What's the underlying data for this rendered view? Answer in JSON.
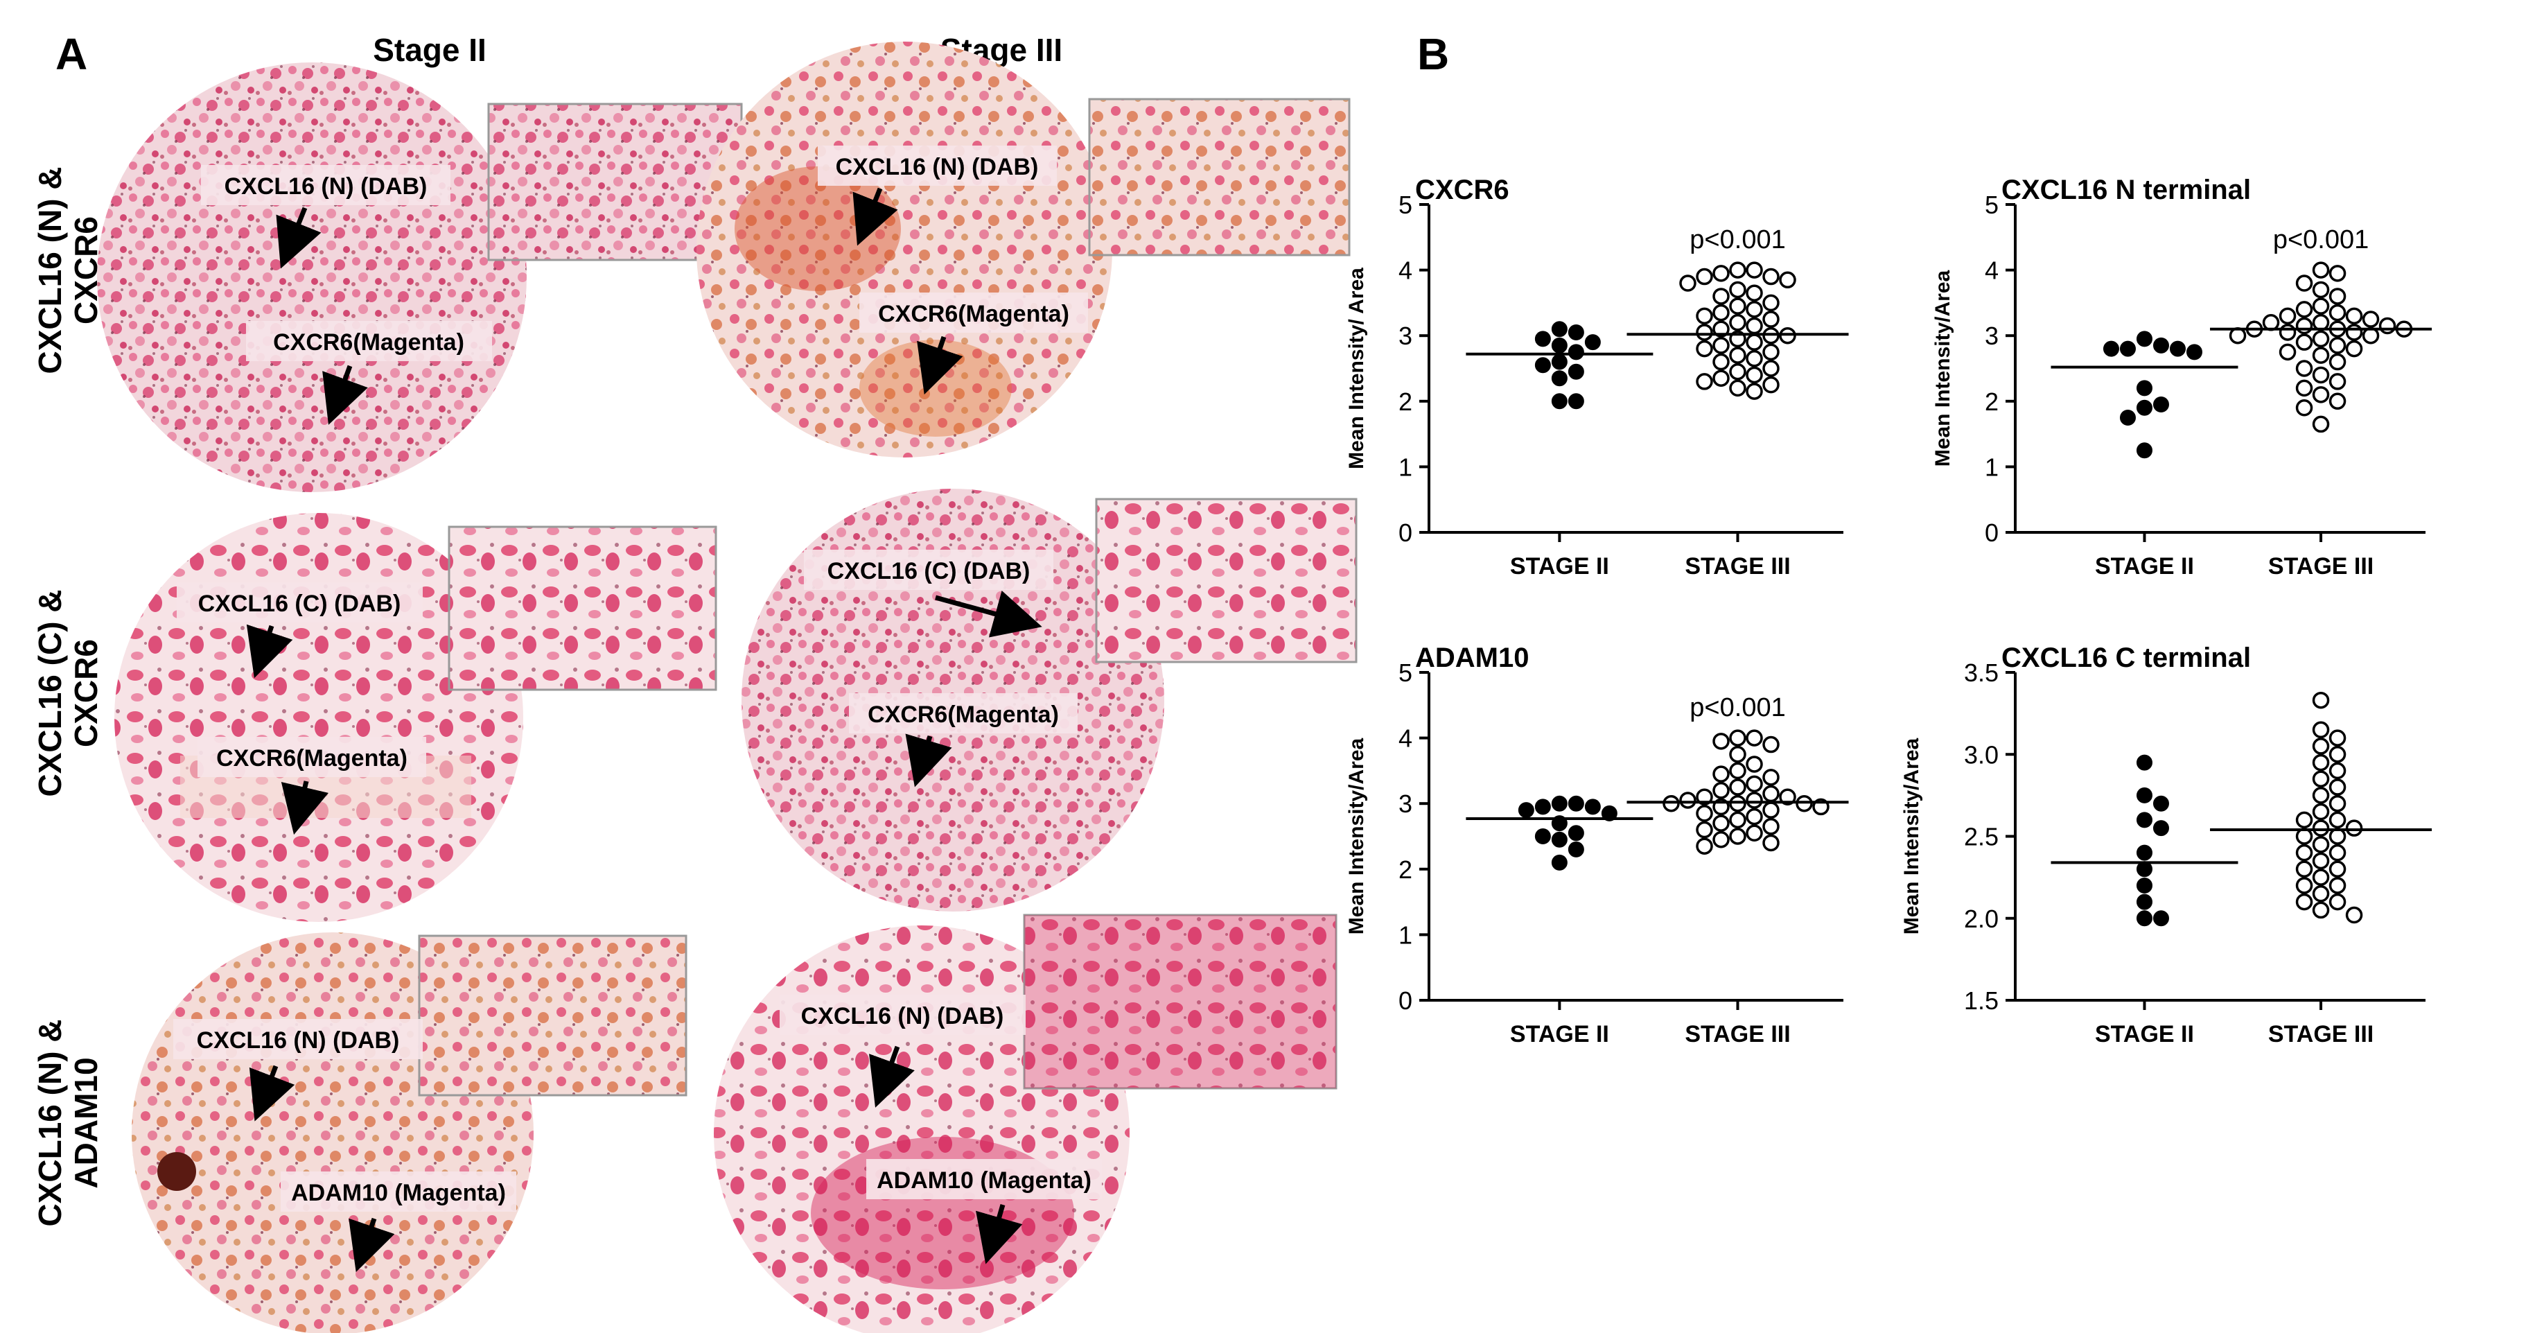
{
  "panel_a": {
    "letter": "A",
    "col_headers": [
      "Stage II",
      "Stage III"
    ],
    "rows": [
      {
        "row_label": [
          "CXCL16 (N) &",
          "CXCR6"
        ],
        "cells": [
          {
            "label1": "CXCL16 (N) (DAB)",
            "label2": "CXCR6(Magenta)"
          },
          {
            "label1": "CXCL16 (N) (DAB)",
            "label2": "CXCR6(Magenta)"
          }
        ]
      },
      {
        "row_label": [
          "CXCL16 (C) &",
          "CXCR6"
        ],
        "cells": [
          {
            "label1": "CXCL16 (C) (DAB)",
            "label2": "CXCR6(Magenta)"
          },
          {
            "label1": "CXCL16 (C) (DAB)",
            "label2": "CXCR6(Magenta)"
          }
        ]
      },
      {
        "row_label": [
          "CXCL16 (N) &",
          "ADAM10"
        ],
        "cells": [
          {
            "label1": "CXCL16 (N) (DAB)",
            "label2": "ADAM10 (Magenta)"
          },
          {
            "label1": "CXCL16 (N) (DAB)",
            "label2": "ADAM10 (Magenta)"
          }
        ]
      }
    ],
    "colors": {
      "tissue_bg": "#f4dede",
      "tissue_pink": "#e04a78",
      "tissue_deep": "#c8184f",
      "dab_brown": "#a0522d",
      "label_box": "#f6e4e8"
    }
  },
  "panel_b": {
    "letter": "B"
  },
  "chart_data": [
    {
      "type": "scatter",
      "title": "CXCR6",
      "ylabel": "Mean Intensity/ Area",
      "ylim": [
        0,
        5
      ],
      "yticks": [
        "0",
        "1",
        "2",
        "3",
        "4",
        "5"
      ],
      "categories": [
        "STAGE II",
        "STAGE III"
      ],
      "annotation": "p<0.001",
      "series": [
        {
          "category": "STAGE II",
          "marker": "filled",
          "median": 2.72,
          "values": [
            3.1,
            3.05,
            2.95,
            2.9,
            2.85,
            2.75,
            2.6,
            2.55,
            2.45,
            2.35,
            2.0,
            2.0
          ]
        },
        {
          "category": "STAGE III",
          "marker": "open",
          "median": 3.02,
          "values": [
            4.0,
            4.0,
            3.95,
            3.9,
            3.9,
            3.85,
            3.8,
            3.7,
            3.65,
            3.6,
            3.5,
            3.45,
            3.4,
            3.35,
            3.3,
            3.25,
            3.2,
            3.15,
            3.1,
            3.05,
            3.0,
            3.0,
            2.95,
            2.9,
            2.85,
            2.8,
            2.75,
            2.7,
            2.65,
            2.6,
            2.5,
            2.45,
            2.4,
            2.35,
            2.3,
            2.25,
            2.2,
            2.15
          ]
        }
      ]
    },
    {
      "type": "scatter",
      "title": "CXCL16 N terminal",
      "ylabel": "Mean Intensity/Area",
      "ylim": [
        0,
        5
      ],
      "yticks": [
        "0",
        "1",
        "2",
        "3",
        "4",
        "5"
      ],
      "categories": [
        "STAGE II",
        "STAGE III"
      ],
      "annotation": "p<0.001",
      "series": [
        {
          "category": "STAGE II",
          "marker": "filled",
          "median": 2.52,
          "values": [
            2.95,
            2.85,
            2.8,
            2.8,
            2.8,
            2.75,
            2.2,
            1.9,
            1.95,
            1.75,
            1.25
          ]
        },
        {
          "category": "STAGE III",
          "marker": "open",
          "median": 3.1,
          "values": [
            4.0,
            3.95,
            3.8,
            3.7,
            3.6,
            3.45,
            3.4,
            3.35,
            3.3,
            3.3,
            3.25,
            3.2,
            3.2,
            3.15,
            3.15,
            3.1,
            3.1,
            3.1,
            3.05,
            3.05,
            3.0,
            3.0,
            2.95,
            2.9,
            2.85,
            2.8,
            2.75,
            2.7,
            2.6,
            2.5,
            2.4,
            2.3,
            2.2,
            2.1,
            2.0,
            1.9,
            1.65
          ]
        }
      ]
    },
    {
      "type": "scatter",
      "title": "ADAM10",
      "ylabel": "Mean Intensity/Area",
      "ylim": [
        0,
        5
      ],
      "yticks": [
        "0",
        "1",
        "2",
        "3",
        "4",
        "5"
      ],
      "categories": [
        "STAGE II",
        "STAGE III"
      ],
      "annotation": "p<0.001",
      "series": [
        {
          "category": "STAGE II",
          "marker": "filled",
          "median": 2.77,
          "values": [
            3.0,
            3.0,
            2.95,
            2.95,
            2.9,
            2.85,
            2.7,
            2.55,
            2.5,
            2.45,
            2.3,
            2.1
          ]
        },
        {
          "category": "STAGE III",
          "marker": "open",
          "median": 3.02,
          "values": [
            4.0,
            4.0,
            3.95,
            3.9,
            3.75,
            3.6,
            3.5,
            3.45,
            3.4,
            3.3,
            3.25,
            3.2,
            3.15,
            3.1,
            3.1,
            3.05,
            3.05,
            3.0,
            3.0,
            3.0,
            2.95,
            2.95,
            2.9,
            2.85,
            2.8,
            2.75,
            2.7,
            2.65,
            2.6,
            2.55,
            2.5,
            2.45,
            2.4,
            2.35
          ]
        }
      ]
    },
    {
      "type": "scatter",
      "title": "CXCL16 C terminal",
      "ylabel": "Mean Intensity/Area",
      "ylim": [
        1.5,
        3.5
      ],
      "yticks": [
        "1.5",
        "2.0",
        "2.5",
        "3.0",
        "3.5"
      ],
      "categories": [
        "STAGE II",
        "STAGE III"
      ],
      "annotation": "",
      "series": [
        {
          "category": "STAGE II",
          "marker": "filled",
          "median": 2.34,
          "values": [
            2.95,
            2.75,
            2.7,
            2.6,
            2.55,
            2.4,
            2.3,
            2.2,
            2.1,
            2.0,
            2.0
          ]
        },
        {
          "category": "STAGE III",
          "marker": "open",
          "median": 2.54,
          "values": [
            3.33,
            3.15,
            3.1,
            3.05,
            3.0,
            2.95,
            2.9,
            2.85,
            2.8,
            2.75,
            2.7,
            2.65,
            2.6,
            2.6,
            2.55,
            2.55,
            2.5,
            2.5,
            2.45,
            2.4,
            2.4,
            2.35,
            2.3,
            2.3,
            2.25,
            2.2,
            2.2,
            2.15,
            2.1,
            2.1,
            2.05,
            2.02
          ]
        }
      ]
    }
  ]
}
